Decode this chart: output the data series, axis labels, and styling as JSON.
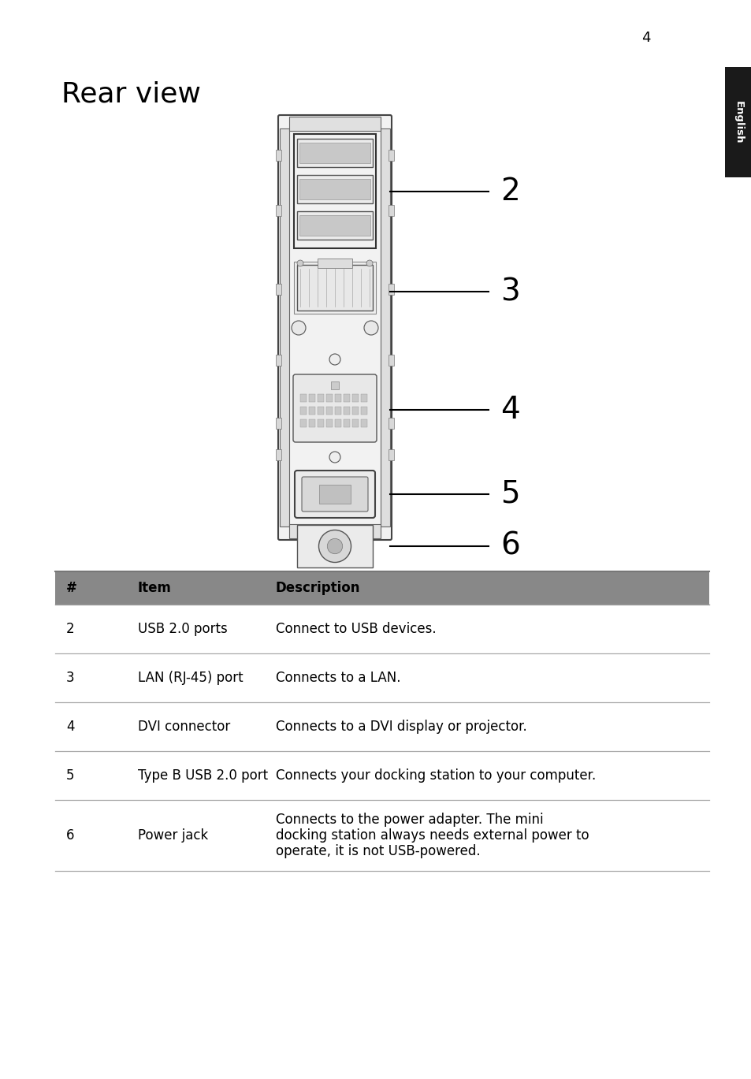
{
  "page_number": "4",
  "title": "Rear view",
  "background_color": "#ffffff",
  "tab_label": "English",
  "tab_bg": "#1a1a1a",
  "tab_text_color": "#ffffff",
  "table_header_bg": "#888888",
  "table_rows": [
    {
      "num": "2",
      "item": "USB 2.0 ports",
      "desc": "Connect to USB devices."
    },
    {
      "num": "3",
      "item": "LAN (RJ-45) port",
      "desc": "Connects to a LAN."
    },
    {
      "num": "4",
      "item": "DVI connector",
      "desc": "Connects to a DVI display or projector."
    },
    {
      "num": "5",
      "item": "Type B USB 2.0 port",
      "desc": "Connects your docking station to your computer."
    },
    {
      "num": "6",
      "item": "Power jack",
      "desc": "Connects to the power adapter. The mini\ndocking station always needs external power to\noperate, it is not USB-powered."
    }
  ]
}
